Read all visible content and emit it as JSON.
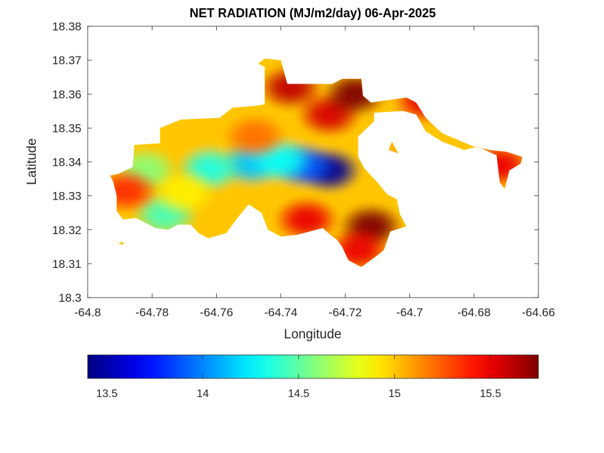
{
  "chart_data": {
    "type": "heatmap",
    "title": "NET RADIATION (MJ/m2/day) 06-Apr-2025",
    "xlabel": "Longitude",
    "ylabel": "Latitude",
    "xlim": [
      -64.8,
      -64.66
    ],
    "ylim": [
      18.3,
      18.38
    ],
    "x_ticks": [
      "-64.8",
      "-64.78",
      "-64.76",
      "-64.74",
      "-64.72",
      "-64.7",
      "-64.68",
      "-64.66"
    ],
    "y_ticks": [
      "18.3",
      "18.31",
      "18.32",
      "18.33",
      "18.34",
      "18.35",
      "18.36",
      "18.37",
      "18.38"
    ],
    "colorbar": {
      "colormap": "jet",
      "range": [
        13.4,
        15.75
      ],
      "ticks": [
        "13.5",
        "14",
        "14.5",
        "15",
        "15.5"
      ]
    },
    "grid": false,
    "approx_field": {
      "background": 15.0,
      "blobs": [
        {
          "lon": -64.725,
          "lat": 18.3375,
          "value": 13.45
        },
        {
          "lon": -64.733,
          "lat": 18.339,
          "value": 13.9
        },
        {
          "lon": -64.749,
          "lat": 18.3395,
          "value": 14.15
        },
        {
          "lon": -64.762,
          "lat": 18.338,
          "value": 14.35
        },
        {
          "lon": -64.74,
          "lat": 18.3405,
          "value": 14.3
        },
        {
          "lon": -64.776,
          "lat": 18.3245,
          "value": 14.45
        },
        {
          "lon": -64.782,
          "lat": 18.3375,
          "value": 14.6
        },
        {
          "lon": -64.788,
          "lat": 18.3315,
          "value": 15.35
        },
        {
          "lon": -64.77,
          "lat": 18.331,
          "value": 14.9
        },
        {
          "lon": -64.748,
          "lat": 18.3475,
          "value": 15.2
        },
        {
          "lon": -64.725,
          "lat": 18.354,
          "value": 15.55
        },
        {
          "lon": -64.717,
          "lat": 18.36,
          "value": 15.75
        },
        {
          "lon": -64.737,
          "lat": 18.362,
          "value": 15.6
        },
        {
          "lon": -64.732,
          "lat": 18.323,
          "value": 15.5
        },
        {
          "lon": -64.712,
          "lat": 18.321,
          "value": 15.75
        },
        {
          "lon": -64.716,
          "lat": 18.314,
          "value": 15.5
        },
        {
          "lon": -64.695,
          "lat": 18.358,
          "value": 15.5
        },
        {
          "lon": -64.672,
          "lat": 18.339,
          "value": 15.5
        },
        {
          "lon": -64.706,
          "lat": 18.345,
          "value": 15.05
        }
      ],
      "land_outline": [
        [
          -64.7905,
          18.3365
        ],
        [
          -64.786,
          18.3385
        ],
        [
          -64.7855,
          18.345
        ],
        [
          -64.7775,
          18.3455
        ],
        [
          -64.7775,
          18.35
        ],
        [
          -64.771,
          18.3525
        ],
        [
          -64.759,
          18.353
        ],
        [
          -64.755,
          18.356
        ],
        [
          -64.748,
          18.3565
        ],
        [
          -64.745,
          18.357
        ],
        [
          -64.745,
          18.368
        ],
        [
          -64.747,
          18.369
        ],
        [
          -64.745,
          18.3705
        ],
        [
          -64.74,
          18.37
        ],
        [
          -64.738,
          18.363
        ],
        [
          -64.724,
          18.363
        ],
        [
          -64.721,
          18.3645
        ],
        [
          -64.715,
          18.3645
        ],
        [
          -64.7145,
          18.3595
        ],
        [
          -64.712,
          18.3575
        ],
        [
          -64.701,
          18.359
        ],
        [
          -64.698,
          18.3575
        ],
        [
          -64.695,
          18.353
        ],
        [
          -64.69,
          18.3485
        ],
        [
          -64.68,
          18.3445
        ],
        [
          -64.675,
          18.3435
        ],
        [
          -64.67,
          18.343
        ],
        [
          -64.665,
          18.3415
        ],
        [
          -64.6655,
          18.3395
        ],
        [
          -64.669,
          18.3375
        ],
        [
          -64.6705,
          18.332
        ],
        [
          -64.672,
          18.334
        ],
        [
          -64.673,
          18.342
        ],
        [
          -64.679,
          18.3445
        ],
        [
          -64.683,
          18.3435
        ],
        [
          -64.69,
          18.346
        ],
        [
          -64.695,
          18.349
        ],
        [
          -64.698,
          18.354
        ],
        [
          -64.702,
          18.355
        ],
        [
          -64.711,
          18.3545
        ],
        [
          -64.711,
          18.352
        ],
        [
          -64.716,
          18.3475
        ],
        [
          -64.716,
          18.3415
        ],
        [
          -64.714,
          18.338
        ],
        [
          -64.71,
          18.334
        ],
        [
          -64.707,
          18.3305
        ],
        [
          -64.704,
          18.329
        ],
        [
          -64.703,
          18.3245
        ],
        [
          -64.701,
          18.321
        ],
        [
          -64.706,
          18.3195
        ],
        [
          -64.708,
          18.314
        ],
        [
          -64.71,
          18.3125
        ],
        [
          -64.715,
          18.309
        ],
        [
          -64.719,
          18.311
        ],
        [
          -64.721,
          18.315
        ],
        [
          -64.7225,
          18.317
        ],
        [
          -64.724,
          18.318
        ],
        [
          -64.727,
          18.3205
        ],
        [
          -64.735,
          18.3185
        ],
        [
          -64.74,
          18.318
        ],
        [
          -64.744,
          18.32
        ],
        [
          -64.746,
          18.325
        ],
        [
          -64.75,
          18.3275
        ],
        [
          -64.7535,
          18.3235
        ],
        [
          -64.757,
          18.319
        ],
        [
          -64.7625,
          18.3175
        ],
        [
          -64.7655,
          18.319
        ],
        [
          -64.768,
          18.3215
        ],
        [
          -64.772,
          18.3215
        ],
        [
          -64.775,
          18.32
        ],
        [
          -64.779,
          18.3205
        ],
        [
          -64.782,
          18.322
        ],
        [
          -64.785,
          18.3235
        ],
        [
          -64.789,
          18.323
        ],
        [
          -64.791,
          18.3255
        ],
        [
          -64.791,
          18.33
        ],
        [
          -64.792,
          18.334
        ],
        [
          -64.793,
          18.336
        ]
      ],
      "islands": [
        [
          [
            -64.7065,
            18.3435
          ],
          [
            -64.7035,
            18.3425
          ],
          [
            -64.7055,
            18.346
          ]
        ],
        [
          [
            -64.7905,
            18.316
          ],
          [
            -64.789,
            18.3155
          ],
          [
            -64.789,
            18.3165
          ]
        ]
      ]
    }
  }
}
